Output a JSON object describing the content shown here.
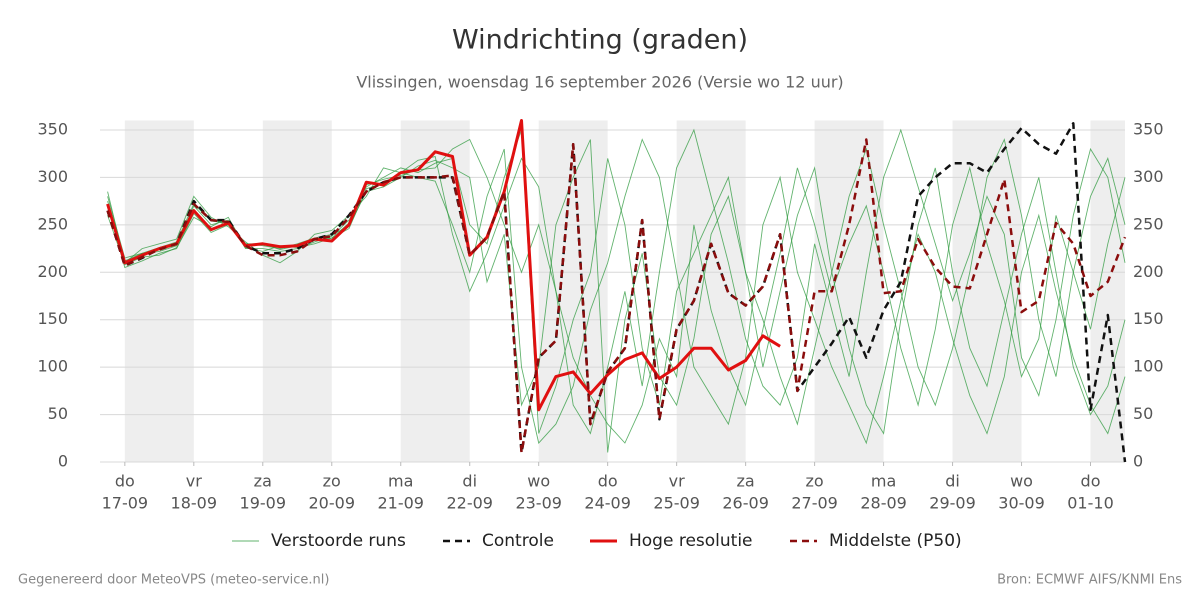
{
  "chart_data": {
    "type": "line",
    "title": "Windrichting (graden)",
    "subtitle": "Vlissingen, woensdag 16 september 2026 (Versie wo 12 uur)",
    "footer_left": "Gegenereerd door MeteoVPS (meteo-service.nl)",
    "footer_right": "Bron: ECMWF AIFS/KNMI Ens",
    "x": [
      0.75,
      1,
      1.25,
      1.5,
      1.75,
      2,
      2.25,
      2.5,
      2.75,
      3,
      3.25,
      3.5,
      3.75,
      4,
      4.25,
      4.5,
      4.75,
      5,
      5.25,
      5.5,
      5.75,
      6,
      6.25,
      6.5,
      6.75,
      7,
      7.25,
      7.5,
      7.75,
      8,
      8.25,
      8.5,
      8.75,
      9,
      9.25,
      9.5,
      9.75,
      10,
      10.25,
      10.5,
      10.75,
      11,
      11.25,
      11.5,
      11.75,
      12,
      12.25,
      12.5,
      12.75,
      13,
      13.25,
      13.5,
      13.75,
      14,
      14.25,
      14.5,
      14.75,
      15,
      15.25,
      15.5
    ],
    "xlim": [
      0.64,
      15.5
    ],
    "xticks": [
      {
        "value": 1,
        "label": [
          "do",
          "17-09"
        ]
      },
      {
        "value": 2,
        "label": [
          "vr",
          "18-09"
        ]
      },
      {
        "value": 3,
        "label": [
          "za",
          "19-09"
        ]
      },
      {
        "value": 4,
        "label": [
          "zo",
          "20-09"
        ]
      },
      {
        "value": 5,
        "label": [
          "ma",
          "21-09"
        ]
      },
      {
        "value": 6,
        "label": [
          "di",
          "22-09"
        ]
      },
      {
        "value": 7,
        "label": [
          "wo",
          "23-09"
        ]
      },
      {
        "value": 8,
        "label": [
          "do",
          "24-09"
        ]
      },
      {
        "value": 9,
        "label": [
          "vr",
          "25-09"
        ]
      },
      {
        "value": 10,
        "label": [
          "za",
          "26-09"
        ]
      },
      {
        "value": 11,
        "label": [
          "zo",
          "27-09"
        ]
      },
      {
        "value": 12,
        "label": [
          "ma",
          "28-09"
        ]
      },
      {
        "value": 13,
        "label": [
          "di",
          "29-09"
        ]
      },
      {
        "value": 14,
        "label": [
          "wo",
          "30-09"
        ]
      },
      {
        "value": 15,
        "label": [
          "do",
          "01-10"
        ]
      }
    ],
    "ylim": [
      0,
      360
    ],
    "yticks": [
      0,
      50,
      100,
      150,
      200,
      250,
      300,
      350
    ],
    "grid": true,
    "ensemble": {
      "name": "Verstoorde runs",
      "color": "#2e9a3e",
      "members": [
        [
          280,
          215,
          220,
          222,
          228,
          270,
          250,
          255,
          225,
          225,
          222,
          225,
          232,
          238,
          255,
          290,
          300,
          310,
          305,
          315,
          320,
          250,
          230,
          300,
          350,
          30,
          80,
          150,
          200,
          320,
          250,
          120,
          60,
          180,
          220,
          260,
          300,
          200,
          150,
          90,
          40,
          120,
          200,
          280,
          330,
          250,
          180,
          100,
          60,
          120,
          200,
          300,
          340,
          260,
          150,
          90,
          200,
          280,
          320,
          250
        ],
        [
          270,
          205,
          212,
          220,
          225,
          262,
          242,
          250,
          230,
          228,
          225,
          230,
          236,
          240,
          248,
          285,
          290,
          300,
          312,
          318,
          310,
          300,
          190,
          240,
          60,
          100,
          250,
          300,
          340,
          10,
          150,
          220,
          90,
          60,
          130,
          240,
          280,
          200,
          100,
          180,
          260,
          310,
          200,
          120,
          60,
          30,
          150,
          250,
          310,
          200,
          120,
          80,
          160,
          240,
          300,
          200,
          100,
          50,
          80,
          150
        ],
        [
          285,
          210,
          225,
          230,
          235,
          280,
          258,
          248,
          232,
          218,
          210,
          222,
          240,
          244,
          260,
          280,
          310,
          305,
          300,
          296,
          250,
          200,
          280,
          330,
          100,
          20,
          40,
          80,
          160,
          210,
          280,
          340,
          300,
          200,
          100,
          70,
          40,
          110,
          250,
          300,
          200,
          150,
          100,
          60,
          20,
          90,
          170,
          240,
          200,
          130,
          70,
          30,
          90,
          200,
          260,
          180,
          110,
          60,
          30,
          90
        ],
        [
          260,
          208,
          216,
          218,
          226,
          258,
          248,
          258,
          226,
          222,
          228,
          226,
          230,
          236,
          252,
          292,
          298,
          302,
          308,
          310,
          330,
          340,
          300,
          250,
          200,
          250,
          180,
          60,
          30,
          100,
          180,
          80,
          200,
          310,
          350,
          280,
          210,
          130,
          80,
          60,
          110,
          230,
          160,
          90,
          200,
          300,
          350,
          290,
          230,
          170,
          220,
          280,
          240,
          110,
          70,
          150,
          260,
          330,
          300,
          210
        ],
        [
          275,
          212,
          220,
          226,
          232,
          272,
          254,
          252,
          230,
          230,
          224,
          228,
          234,
          236,
          246,
          288,
          294,
          305,
          318,
          322,
          240,
          180,
          220,
          270,
          320,
          290,
          180,
          110,
          70,
          40,
          20,
          60,
          130,
          90,
          250,
          160,
          100,
          60,
          140,
          220,
          310,
          250,
          180,
          230,
          270,
          200,
          120,
          60,
          140,
          250,
          310,
          230,
          170,
          90,
          130,
          260,
          200,
          140,
          230,
          300
        ]
      ]
    },
    "series": [
      {
        "name": "Controle",
        "color": "#111111",
        "dash": true,
        "values": [
          265,
          207,
          215,
          225,
          230,
          275,
          255,
          255,
          228,
          220,
          220,
          225,
          235,
          240,
          260,
          285,
          295,
          300,
          300,
          300,
          300,
          218,
          237,
          285,
          10,
          110,
          128,
          335,
          40,
          95,
          120,
          255,
          45,
          140,
          170,
          230,
          178,
          165,
          185,
          240,
          75,
          100,
          125,
          153,
          110,
          160,
          190,
          280,
          300,
          315,
          315,
          305,
          330,
          352,
          335,
          325,
          357,
          55,
          155,
          0
        ]
      },
      {
        "name": "Hoge resolutie",
        "color": "#e01010",
        "dash": false,
        "values": [
          272,
          210,
          218,
          225,
          230,
          265,
          245,
          252,
          228,
          230,
          227,
          228,
          235,
          233,
          250,
          295,
          292,
          305,
          308,
          327,
          322,
          218,
          237,
          285,
          360,
          55,
          90,
          95,
          72,
          92,
          108,
          115,
          88,
          100,
          120,
          120,
          97,
          107,
          133,
          122,
          null,
          null,
          null,
          null,
          null,
          null,
          null,
          null,
          null,
          null,
          null,
          null,
          null,
          null,
          null,
          null,
          null,
          null,
          null,
          null
        ]
      },
      {
        "name": "Middelste (P50)",
        "color": "#8b0d0d",
        "dash": true,
        "values": [
          265,
          207,
          216,
          224,
          230,
          272,
          255,
          253,
          228,
          218,
          218,
          222,
          235,
          238,
          258,
          285,
          295,
          300,
          300,
          300,
          302,
          218,
          237,
          285,
          10,
          110,
          128,
          335,
          40,
          95,
          120,
          255,
          45,
          140,
          170,
          230,
          178,
          165,
          185,
          240,
          75,
          180,
          180,
          250,
          340,
          178,
          180,
          235,
          205,
          185,
          183,
          240,
          298,
          158,
          170,
          252,
          230,
          175,
          190,
          237
        ]
      }
    ]
  }
}
